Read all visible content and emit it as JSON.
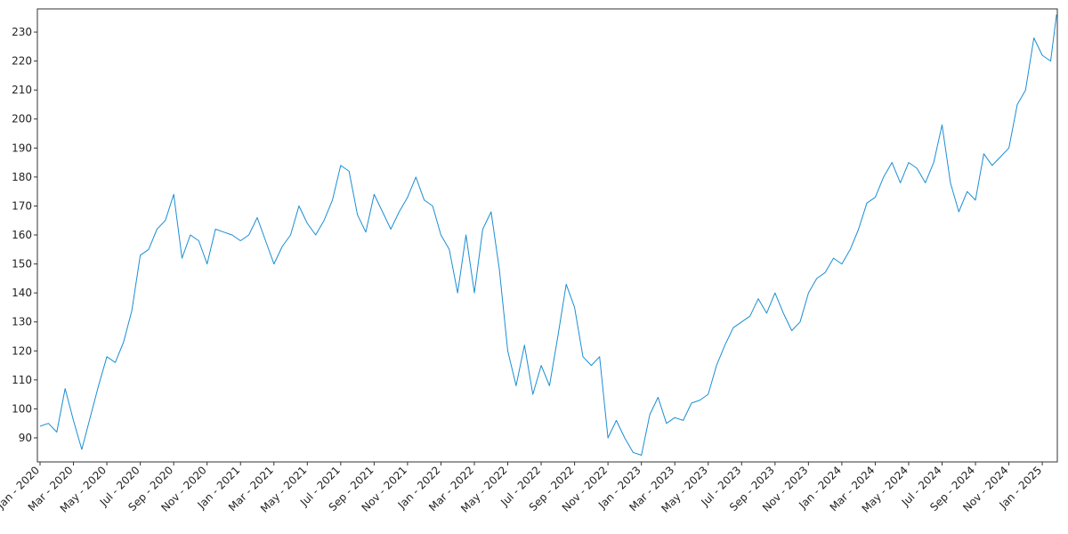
{
  "chart_data": {
    "type": "line",
    "color": "#1a8ed4",
    "x": [
      0,
      0.5,
      1,
      1.5,
      2,
      2.5,
      3,
      3.5,
      4,
      4.5,
      5,
      5.5,
      6,
      6.5,
      7,
      7.5,
      8,
      8.5,
      9,
      9.5,
      10,
      10.5,
      11,
      11.5,
      12,
      12.5,
      13,
      13.5,
      14,
      14.5,
      15,
      15.5,
      16,
      16.5,
      17,
      17.5,
      18,
      18.5,
      19,
      19.5,
      20,
      20.5,
      21,
      21.5,
      22,
      22.5,
      23,
      23.5,
      24,
      24.5,
      25,
      25.5,
      26,
      26.5,
      27,
      27.5,
      28,
      28.5,
      29,
      29.5,
      30,
      30.5,
      31,
      31.5,
      32,
      32.5,
      33,
      33.5,
      34,
      34.5,
      35,
      35.5,
      36,
      36.5,
      37,
      37.5,
      38,
      38.5,
      39,
      39.5,
      40,
      40.5,
      41,
      41.5,
      42,
      42.5,
      43,
      43.5,
      44,
      44.5,
      45,
      45.5,
      46,
      46.5,
      47,
      47.5,
      48,
      48.5,
      49,
      49.5,
      50,
      50.5,
      51,
      51.5,
      52,
      52.5,
      53,
      53.5,
      54,
      54.5,
      55,
      55.5,
      56,
      56.5,
      57,
      57.5,
      58,
      58.5,
      59,
      59.5,
      60,
      60.5,
      60.85
    ],
    "values": [
      94,
      95,
      92,
      107,
      96,
      86,
      97,
      108,
      118,
      116,
      123,
      134,
      153,
      155,
      162,
      165,
      174,
      152,
      160,
      158,
      150,
      162,
      161,
      160,
      158,
      160,
      166,
      158,
      150,
      156,
      160,
      170,
      164,
      160,
      165,
      172,
      184,
      182,
      167,
      161,
      174,
      168,
      162,
      168,
      173,
      180,
      172,
      170,
      160,
      155,
      140,
      160,
      140,
      162,
      168,
      148,
      120,
      108,
      122,
      105,
      115,
      108,
      125,
      143,
      135,
      118,
      115,
      118,
      90,
      96,
      90,
      85,
      84,
      98,
      104,
      95,
      97,
      96,
      102,
      103,
      105,
      115,
      122,
      128,
      130,
      132,
      138,
      133,
      140,
      133,
      127,
      130,
      140,
      145,
      147,
      152,
      150,
      155,
      162,
      171,
      173,
      180,
      185,
      178,
      185,
      183,
      178,
      185,
      198,
      178,
      168,
      175,
      172,
      188,
      184,
      187,
      190,
      205,
      210,
      228,
      222,
      220,
      236
    ],
    "xlim": [
      -0.16,
      60.9
    ],
    "ylim": [
      81.7,
      238
    ],
    "yticks": [
      90,
      100,
      110,
      120,
      130,
      140,
      150,
      160,
      170,
      180,
      190,
      200,
      210,
      220,
      230
    ],
    "xticks": [
      {
        "value": 0,
        "label": "Jan - 2020"
      },
      {
        "value": 2,
        "label": "Mar - 2020"
      },
      {
        "value": 4,
        "label": "May - 2020"
      },
      {
        "value": 6,
        "label": "Jul - 2020"
      },
      {
        "value": 8,
        "label": "Sep - 2020"
      },
      {
        "value": 10,
        "label": "Nov - 2020"
      },
      {
        "value": 12,
        "label": "Jan - 2021"
      },
      {
        "value": 14,
        "label": "Mar - 2021"
      },
      {
        "value": 16,
        "label": "May - 2021"
      },
      {
        "value": 18,
        "label": "Jul - 2021"
      },
      {
        "value": 20,
        "label": "Sep - 2021"
      },
      {
        "value": 22,
        "label": "Nov - 2021"
      },
      {
        "value": 24,
        "label": "Jan - 2022"
      },
      {
        "value": 26,
        "label": "Mar - 2022"
      },
      {
        "value": 28,
        "label": "May - 2022"
      },
      {
        "value": 30,
        "label": "Jul - 2022"
      },
      {
        "value": 32,
        "label": "Sep - 2022"
      },
      {
        "value": 34,
        "label": "Nov - 2022"
      },
      {
        "value": 36,
        "label": "Jan - 2023"
      },
      {
        "value": 38,
        "label": "Mar - 2023"
      },
      {
        "value": 40,
        "label": "May - 2023"
      },
      {
        "value": 42,
        "label": "Jul - 2023"
      },
      {
        "value": 44,
        "label": "Sep - 2023"
      },
      {
        "value": 46,
        "label": "Nov - 2023"
      },
      {
        "value": 48,
        "label": "Jan - 2024"
      },
      {
        "value": 50,
        "label": "Mar - 2024"
      },
      {
        "value": 52,
        "label": "May - 2024"
      },
      {
        "value": 54,
        "label": "Jul - 2024"
      },
      {
        "value": 56,
        "label": "Sep - 2024"
      },
      {
        "value": 58,
        "label": "Nov - 2024"
      },
      {
        "value": 60,
        "label": "Jan - 2025"
      }
    ],
    "grid": false
  }
}
